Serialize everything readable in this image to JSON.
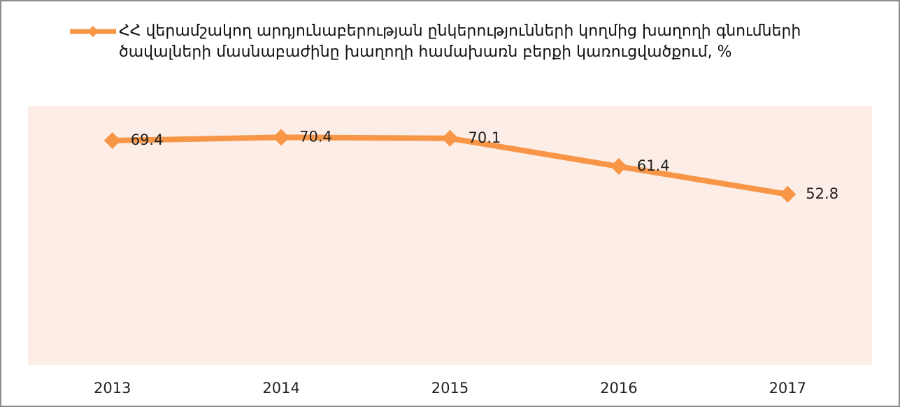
{
  "chart_data": {
    "type": "line",
    "categories": [
      "2013",
      "2014",
      "2015",
      "2016",
      "2017"
    ],
    "series": [
      {
        "name": "ՀՀ վերամշակող արդյունաբերության ընկերությունների կողմից խաղողի գնումների ծավալների մասնաբաժինը խաղողի համախառն բերքի կառուցվածքում, %",
        "color": "#f79646",
        "values": [
          69.4,
          70.4,
          70.1,
          61.4,
          52.8
        ]
      }
    ],
    "ylim": [
      0,
      80
    ],
    "legend": "top"
  }
}
